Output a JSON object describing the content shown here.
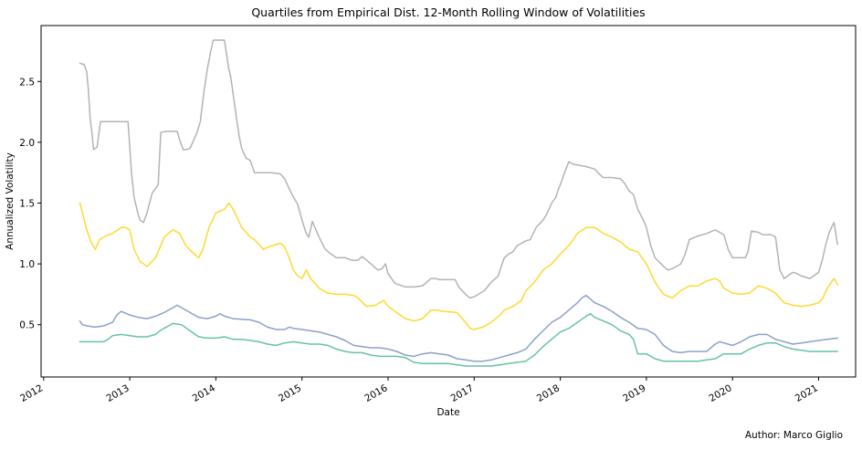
{
  "author_note": "Author: Marco Giglio",
  "chart_data": {
    "type": "line",
    "title": "Quartiles from Empirical Dist. 12-Month Rolling Window of Volatilities",
    "xlabel": "Date",
    "ylabel": "Annualized Volatility",
    "xlim": [
      2011.97,
      2021.43
    ],
    "ylim": [
      0.07,
      2.96
    ],
    "x_ticks": [
      2012,
      2013,
      2014,
      2015,
      2016,
      2017,
      2018,
      2019,
      2020,
      2021
    ],
    "x_tick_labels": [
      "2012",
      "2013",
      "2014",
      "2015",
      "2016",
      "2017",
      "2018",
      "2019",
      "2020",
      "2021"
    ],
    "y_ticks": [
      0.5,
      1.0,
      1.5,
      2.0,
      2.5
    ],
    "y_tick_labels": [
      "0.5",
      "1.0",
      "1.5",
      "2.0",
      "2.5"
    ],
    "grid": false,
    "legend": "none",
    "series": [
      {
        "color": "#b3b3b3",
        "x": [
          2012.42,
          2012.47,
          2012.5,
          2012.52,
          2012.54,
          2012.56,
          2012.58,
          2012.62,
          2012.66,
          2012.7,
          2012.8,
          2012.9,
          2012.98,
          2013.02,
          2013.05,
          2013.1,
          2013.12,
          2013.16,
          2013.2,
          2013.26,
          2013.33,
          2013.36,
          2013.42,
          2013.5,
          2013.55,
          2013.58,
          2013.62,
          2013.66,
          2013.7,
          2013.75,
          2013.78,
          2013.82,
          2013.86,
          2013.9,
          2013.94,
          2013.97,
          2014.0,
          2014.05,
          2014.1,
          2014.15,
          2014.17,
          2014.2,
          2014.24,
          2014.27,
          2014.3,
          2014.35,
          2014.4,
          2014.45,
          2014.55,
          2014.65,
          2014.75,
          2014.8,
          2014.85,
          2014.9,
          2014.95,
          2015.0,
          2015.05,
          2015.08,
          2015.12,
          2015.18,
          2015.22,
          2015.27,
          2015.32,
          2015.4,
          2015.5,
          2015.58,
          2015.65,
          2015.7,
          2015.8,
          2015.88,
          2015.93,
          2015.97,
          2016.0,
          2016.08,
          2016.2,
          2016.3,
          2016.4,
          2016.45,
          2016.5,
          2016.55,
          2016.6,
          2016.7,
          2016.78,
          2016.82,
          2016.9,
          2016.95,
          2017.0,
          2017.05,
          2017.12,
          2017.2,
          2017.28,
          2017.3,
          2017.35,
          2017.4,
          2017.45,
          2017.5,
          2017.55,
          2017.6,
          2017.65,
          2017.72,
          2017.8,
          2017.85,
          2017.9,
          2017.95,
          2017.97,
          2018.0,
          2018.05,
          2018.1,
          2018.15,
          2018.3,
          2018.4,
          2018.45,
          2018.5,
          2018.6,
          2018.7,
          2018.75,
          2018.8,
          2018.85,
          2018.9,
          2018.95,
          2019.0,
          2019.05,
          2019.1,
          2019.2,
          2019.25,
          2019.3,
          2019.4,
          2019.45,
          2019.5,
          2019.6,
          2019.7,
          2019.8,
          2019.85,
          2019.9,
          2019.95,
          2020.0,
          2020.1,
          2020.15,
          2020.18,
          2020.22,
          2020.3,
          2020.35,
          2020.45,
          2020.5,
          2020.53,
          2020.55,
          2020.6,
          2020.7,
          2020.75,
          2020.8,
          2020.9,
          2021.0,
          2021.05,
          2021.08,
          2021.12,
          2021.15,
          2021.18,
          2021.22
        ],
        "values": [
          2.65,
          2.64,
          2.58,
          2.42,
          2.2,
          2.08,
          1.94,
          1.96,
          2.17,
          2.17,
          2.17,
          2.17,
          2.17,
          1.75,
          1.55,
          1.4,
          1.36,
          1.34,
          1.42,
          1.58,
          1.65,
          2.08,
          2.09,
          2.09,
          2.09,
          2.02,
          1.94,
          1.94,
          1.95,
          2.03,
          2.08,
          2.17,
          2.41,
          2.6,
          2.75,
          2.84,
          2.84,
          2.84,
          2.84,
          2.6,
          2.55,
          2.4,
          2.2,
          2.05,
          1.95,
          1.87,
          1.85,
          1.75,
          1.75,
          1.75,
          1.74,
          1.7,
          1.62,
          1.55,
          1.49,
          1.36,
          1.25,
          1.22,
          1.35,
          1.25,
          1.19,
          1.12,
          1.09,
          1.05,
          1.05,
          1.03,
          1.03,
          1.06,
          1.0,
          0.95,
          0.96,
          1.0,
          0.92,
          0.84,
          0.81,
          0.81,
          0.82,
          0.85,
          0.88,
          0.88,
          0.87,
          0.87,
          0.87,
          0.81,
          0.75,
          0.72,
          0.73,
          0.75,
          0.78,
          0.85,
          0.9,
          0.95,
          1.05,
          1.08,
          1.1,
          1.15,
          1.17,
          1.19,
          1.2,
          1.3,
          1.36,
          1.42,
          1.5,
          1.55,
          1.6,
          1.65,
          1.75,
          1.84,
          1.82,
          1.8,
          1.78,
          1.74,
          1.71,
          1.71,
          1.7,
          1.66,
          1.6,
          1.57,
          1.45,
          1.38,
          1.3,
          1.15,
          1.05,
          0.98,
          0.95,
          0.96,
          1.0,
          1.08,
          1.2,
          1.23,
          1.25,
          1.28,
          1.26,
          1.24,
          1.12,
          1.05,
          1.05,
          1.05,
          1.1,
          1.27,
          1.26,
          1.24,
          1.24,
          1.22,
          1.06,
          0.95,
          0.88,
          0.93,
          0.92,
          0.9,
          0.88,
          0.93,
          1.05,
          1.15,
          1.25,
          1.3,
          1.34,
          1.16
        ]
      },
      {
        "color": "#ffd92f",
        "x": [
          2012.42,
          2012.45,
          2012.5,
          2012.55,
          2012.6,
          2012.65,
          2012.72,
          2012.8,
          2012.9,
          2012.95,
          2013.0,
          2013.05,
          2013.12,
          2013.2,
          2013.3,
          2013.4,
          2013.5,
          2013.58,
          2013.65,
          2013.72,
          2013.8,
          2013.85,
          2013.92,
          2014.0,
          2014.1,
          2014.15,
          2014.2,
          2014.3,
          2014.4,
          2014.45,
          2014.55,
          2014.65,
          2014.75,
          2014.8,
          2014.85,
          2014.9,
          2014.95,
          2015.0,
          2015.05,
          2015.1,
          2015.2,
          2015.3,
          2015.4,
          2015.5,
          2015.6,
          2015.65,
          2015.75,
          2015.85,
          2015.95,
          2016.0,
          2016.1,
          2016.2,
          2016.3,
          2016.4,
          2016.5,
          2016.55,
          2016.65,
          2016.8,
          2016.9,
          2016.95,
          2017.0,
          2017.1,
          2017.2,
          2017.3,
          2017.35,
          2017.45,
          2017.55,
          2017.6,
          2017.7,
          2017.8,
          2017.9,
          2018.0,
          2018.1,
          2018.2,
          2018.3,
          2018.4,
          2018.5,
          2018.6,
          2018.7,
          2018.8,
          2018.9,
          2019.0,
          2019.1,
          2019.2,
          2019.3,
          2019.4,
          2019.5,
          2019.6,
          2019.7,
          2019.8,
          2019.85,
          2019.9,
          2020.0,
          2020.1,
          2020.2,
          2020.3,
          2020.4,
          2020.5,
          2020.6,
          2020.7,
          2020.8,
          2020.9,
          2021.0,
          2021.05,
          2021.1,
          2021.15,
          2021.18,
          2021.22
        ],
        "values": [
          1.5,
          1.42,
          1.28,
          1.18,
          1.12,
          1.2,
          1.23,
          1.25,
          1.3,
          1.3,
          1.28,
          1.12,
          1.02,
          0.98,
          1.05,
          1.22,
          1.28,
          1.25,
          1.15,
          1.1,
          1.05,
          1.12,
          1.3,
          1.42,
          1.45,
          1.5,
          1.45,
          1.3,
          1.22,
          1.2,
          1.12,
          1.15,
          1.17,
          1.14,
          1.05,
          0.95,
          0.9,
          0.88,
          0.95,
          0.88,
          0.8,
          0.76,
          0.75,
          0.75,
          0.74,
          0.72,
          0.65,
          0.66,
          0.7,
          0.65,
          0.6,
          0.55,
          0.53,
          0.55,
          0.62,
          0.62,
          0.61,
          0.6,
          0.52,
          0.47,
          0.46,
          0.48,
          0.52,
          0.58,
          0.62,
          0.65,
          0.7,
          0.78,
          0.85,
          0.95,
          1.0,
          1.08,
          1.15,
          1.25,
          1.3,
          1.3,
          1.25,
          1.22,
          1.18,
          1.12,
          1.1,
          1.0,
          0.85,
          0.75,
          0.72,
          0.78,
          0.82,
          0.82,
          0.86,
          0.88,
          0.86,
          0.8,
          0.76,
          0.75,
          0.76,
          0.82,
          0.8,
          0.76,
          0.68,
          0.66,
          0.65,
          0.66,
          0.68,
          0.72,
          0.8,
          0.85,
          0.88,
          0.83
        ]
      },
      {
        "color": "#8da0cb",
        "x": [
          2012.42,
          2012.45,
          2012.5,
          2012.6,
          2012.7,
          2012.8,
          2012.85,
          2012.9,
          2013.0,
          2013.1,
          2013.2,
          2013.3,
          2013.4,
          2013.5,
          2013.55,
          2013.6,
          2013.7,
          2013.8,
          2013.9,
          2014.0,
          2014.05,
          2014.1,
          2014.2,
          2014.4,
          2014.5,
          2014.6,
          2014.7,
          2014.8,
          2014.85,
          2014.9,
          2015.0,
          2015.1,
          2015.2,
          2015.3,
          2015.4,
          2015.5,
          2015.6,
          2015.7,
          2015.8,
          2015.9,
          2016.0,
          2016.1,
          2016.2,
          2016.3,
          2016.4,
          2016.5,
          2016.6,
          2016.7,
          2016.8,
          2016.9,
          2017.0,
          2017.1,
          2017.2,
          2017.3,
          2017.4,
          2017.5,
          2017.6,
          2017.7,
          2017.8,
          2017.9,
          2018.0,
          2018.1,
          2018.2,
          2018.25,
          2018.3,
          2018.4,
          2018.5,
          2018.6,
          2018.7,
          2018.8,
          2018.9,
          2019.0,
          2019.1,
          2019.2,
          2019.3,
          2019.4,
          2019.5,
          2019.6,
          2019.7,
          2019.8,
          2019.85,
          2019.9,
          2020.0,
          2020.1,
          2020.2,
          2020.3,
          2020.4,
          2020.5,
          2020.6,
          2020.7,
          2020.8,
          2020.9,
          2021.0,
          2021.1,
          2021.22
        ],
        "values": [
          0.53,
          0.5,
          0.49,
          0.48,
          0.49,
          0.52,
          0.58,
          0.61,
          0.58,
          0.56,
          0.55,
          0.57,
          0.6,
          0.64,
          0.66,
          0.64,
          0.6,
          0.56,
          0.55,
          0.57,
          0.59,
          0.57,
          0.55,
          0.54,
          0.52,
          0.48,
          0.46,
          0.46,
          0.48,
          0.47,
          0.46,
          0.45,
          0.44,
          0.42,
          0.4,
          0.37,
          0.33,
          0.32,
          0.31,
          0.31,
          0.3,
          0.28,
          0.25,
          0.24,
          0.26,
          0.27,
          0.26,
          0.25,
          0.22,
          0.21,
          0.2,
          0.2,
          0.21,
          0.23,
          0.25,
          0.27,
          0.3,
          0.38,
          0.45,
          0.52,
          0.56,
          0.62,
          0.68,
          0.72,
          0.74,
          0.68,
          0.65,
          0.61,
          0.56,
          0.52,
          0.47,
          0.46,
          0.42,
          0.33,
          0.28,
          0.27,
          0.28,
          0.28,
          0.28,
          0.34,
          0.36,
          0.35,
          0.33,
          0.36,
          0.4,
          0.42,
          0.42,
          0.38,
          0.36,
          0.34,
          0.35,
          0.36,
          0.37,
          0.38,
          0.39
        ]
      },
      {
        "color": "#66c2a5",
        "x": [
          2012.42,
          2012.5,
          2012.6,
          2012.7,
          2012.75,
          2012.8,
          2012.9,
          2013.0,
          2013.1,
          2013.2,
          2013.3,
          2013.35,
          2013.4,
          2013.5,
          2013.6,
          2013.7,
          2013.8,
          2013.9,
          2014.0,
          2014.1,
          2014.2,
          2014.3,
          2014.4,
          2014.5,
          2014.6,
          2014.7,
          2014.8,
          2014.9,
          2015.0,
          2015.1,
          2015.2,
          2015.3,
          2015.4,
          2015.5,
          2015.6,
          2015.7,
          2015.8,
          2015.9,
          2016.0,
          2016.1,
          2016.2,
          2016.3,
          2016.4,
          2016.5,
          2016.6,
          2016.7,
          2016.8,
          2016.9,
          2017.0,
          2017.1,
          2017.2,
          2017.3,
          2017.4,
          2017.5,
          2017.6,
          2017.7,
          2017.8,
          2017.9,
          2018.0,
          2018.1,
          2018.2,
          2018.3,
          2018.35,
          2018.4,
          2018.5,
          2018.6,
          2018.7,
          2018.8,
          2018.85,
          2018.9,
          2019.0,
          2019.1,
          2019.2,
          2019.3,
          2019.4,
          2019.5,
          2019.6,
          2019.7,
          2019.8,
          2019.9,
          2020.0,
          2020.1,
          2020.2,
          2020.3,
          2020.4,
          2020.5,
          2020.6,
          2020.7,
          2020.8,
          2020.9,
          2021.0,
          2021.1,
          2021.22
        ],
        "values": [
          0.36,
          0.36,
          0.36,
          0.36,
          0.38,
          0.41,
          0.42,
          0.41,
          0.4,
          0.4,
          0.42,
          0.45,
          0.47,
          0.51,
          0.5,
          0.45,
          0.4,
          0.39,
          0.39,
          0.4,
          0.38,
          0.38,
          0.37,
          0.36,
          0.34,
          0.33,
          0.35,
          0.36,
          0.35,
          0.34,
          0.34,
          0.33,
          0.3,
          0.28,
          0.27,
          0.27,
          0.25,
          0.24,
          0.24,
          0.24,
          0.23,
          0.19,
          0.18,
          0.18,
          0.18,
          0.18,
          0.17,
          0.16,
          0.16,
          0.16,
          0.16,
          0.17,
          0.18,
          0.19,
          0.2,
          0.25,
          0.32,
          0.38,
          0.44,
          0.47,
          0.52,
          0.57,
          0.59,
          0.56,
          0.53,
          0.5,
          0.45,
          0.42,
          0.38,
          0.26,
          0.26,
          0.22,
          0.2,
          0.2,
          0.2,
          0.2,
          0.2,
          0.21,
          0.22,
          0.26,
          0.26,
          0.26,
          0.3,
          0.33,
          0.35,
          0.35,
          0.32,
          0.3,
          0.29,
          0.28,
          0.28,
          0.28,
          0.28
        ]
      }
    ]
  }
}
